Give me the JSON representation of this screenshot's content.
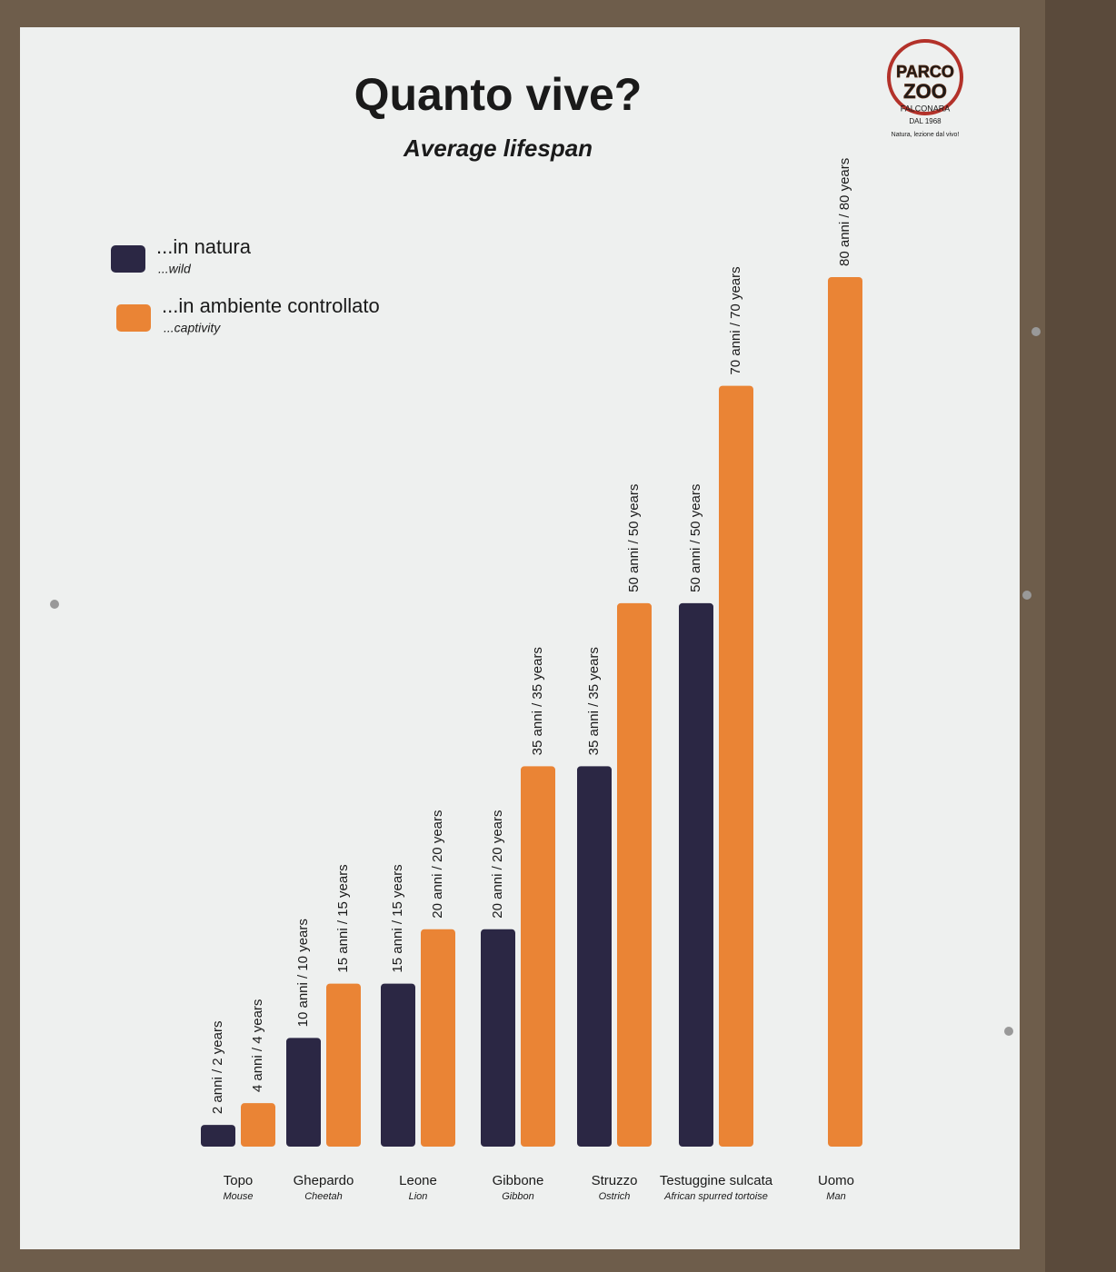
{
  "chart_data": {
    "type": "bar",
    "title": "Quanto vive?",
    "subtitle": "Average lifespan",
    "logo": {
      "name_top": "PARCO",
      "name_bottom": "ZOO",
      "place": "FALCONARA",
      "since": "DAL 1968",
      "motto": "Natura, lezione dal vivo!"
    },
    "categories": [
      "Topo",
      "Ghepardo",
      "Leone",
      "Gibbone",
      "Struzzo",
      "Testuggine sulcata",
      "Uomo"
    ],
    "categories_en": [
      "Mouse",
      "Cheetah",
      "Lion",
      "Gibbon",
      "Ostrich",
      "African spurred tortoise",
      "Man"
    ],
    "series": [
      {
        "name": "...in natura",
        "name_en": "...wild",
        "color": "#2b2744",
        "values": [
          2,
          10,
          15,
          20,
          35,
          50,
          null
        ],
        "value_labels": [
          "2 anni / 2 years",
          "10 anni / 10 years",
          "15 anni / 15 years",
          "20 anni / 20 years",
          "35 anni / 35 years",
          "50 anni / 50 years",
          null
        ]
      },
      {
        "name": "...in ambiente controllato",
        "name_en": "...captivity",
        "color": "#ea8435",
        "values": [
          4,
          15,
          20,
          35,
          50,
          70,
          80
        ],
        "value_labels": [
          "4 anni / 4 years",
          "15 anni / 15 years",
          "20 anni / 20 years",
          "35 anni / 35 years",
          "50 anni / 50 years",
          "70 anni / 70 years",
          "80 anni / 80 years"
        ]
      }
    ],
    "legend": "top-left"
  }
}
